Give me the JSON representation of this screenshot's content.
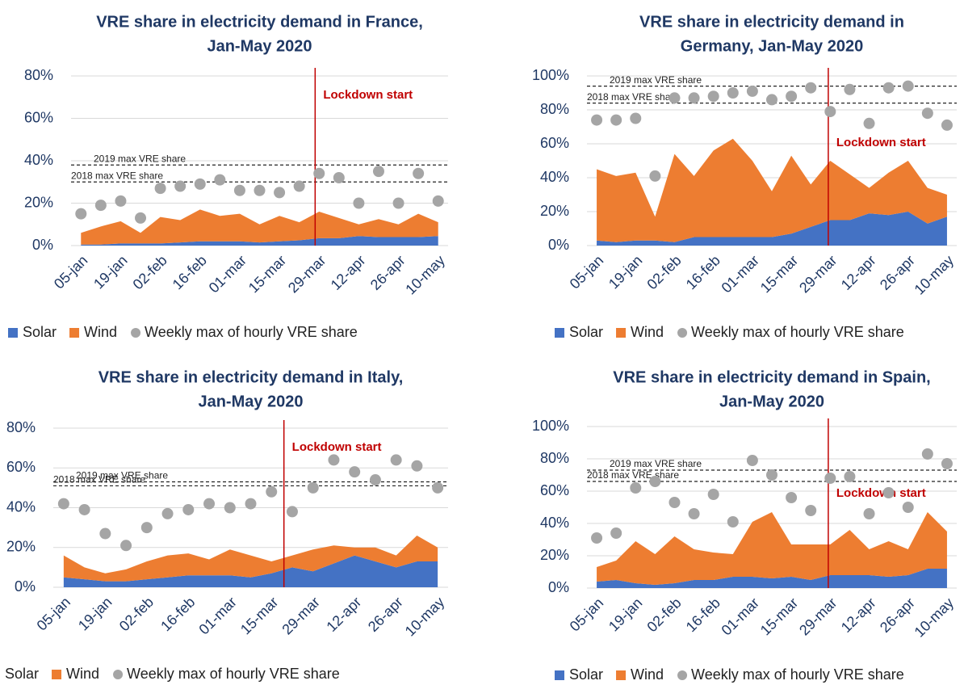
{
  "chart_data": [
    {
      "type": "area",
      "stacked": true,
      "title": [
        "VRE share in electricity demand in France,",
        "Jan-May 2020"
      ],
      "categories": [
        "05-jan",
        null,
        "19-jan",
        null,
        "02-feb",
        null,
        "16-feb",
        null,
        "01-mar",
        null,
        "15-mar",
        null,
        "29-mar",
        null,
        "12-apr",
        null,
        "26-apr",
        null,
        "10-may"
      ],
      "series": [
        {
          "name": "Solar",
          "color": "#4472c4",
          "values": [
            0.5,
            0.5,
            1,
            1,
            1,
            1.5,
            2,
            2,
            2,
            1.5,
            2,
            2.5,
            3.5,
            3.5,
            4.5,
            4,
            4,
            4,
            4.5
          ]
        },
        {
          "name": "Wind",
          "color": "#ed7d31",
          "values": [
            5.5,
            8.5,
            10.5,
            5,
            12.5,
            10.5,
            15,
            12,
            13,
            8.5,
            12,
            8.5,
            12.5,
            9.5,
            5.5,
            8.5,
            6,
            11,
            6.5
          ]
        },
        {
          "name": "Weekly max of hourly VRE share",
          "color": "#a5a5a5",
          "kind": "scatter",
          "values": [
            15,
            19,
            21,
            13,
            27,
            28,
            29,
            31,
            26,
            26,
            25,
            28,
            34,
            32,
            20,
            35,
            20,
            34,
            21
          ]
        }
      ],
      "ylim": [
        0,
        80
      ],
      "yticks": [
        {
          "value": 0,
          "label": "0%"
        },
        {
          "value": 20,
          "label": "20%"
        },
        {
          "value": 40,
          "label": "40%"
        },
        {
          "value": 60,
          "label": "60%"
        },
        {
          "value": 80,
          "label": "80%"
        }
      ],
      "grid": true,
      "reference_lines": [
        {
          "label": "2019 max VRE share",
          "value": 38
        },
        {
          "label": "2018 max VRE share",
          "value": 30
        }
      ],
      "lockdown": {
        "label": "Lockdown start",
        "x": 11.8,
        "color": "#c00000"
      }
    },
    {
      "type": "area",
      "stacked": true,
      "title": [
        "VRE share in electricity demand in",
        "Germany, Jan-May 2020"
      ],
      "categories": [
        "05-jan",
        null,
        "19-jan",
        null,
        "02-feb",
        null,
        "16-feb",
        null,
        "01-mar",
        null,
        "15-mar",
        null,
        "29-mar",
        null,
        "12-apr",
        null,
        "26-apr",
        null,
        "10-may"
      ],
      "series": [
        {
          "name": "Solar",
          "color": "#4472c4",
          "values": [
            3,
            2,
            3,
            3,
            2,
            5,
            5,
            5,
            5,
            5,
            7,
            11,
            15,
            15,
            19,
            18,
            20,
            13,
            17
          ]
        },
        {
          "name": "Wind",
          "color": "#ed7d31",
          "values": [
            42,
            39,
            40,
            14,
            52,
            36,
            51,
            58,
            45,
            27,
            46,
            25,
            35,
            27,
            15,
            25,
            30,
            21,
            13
          ]
        },
        {
          "name": "Weekly max of hourly VRE share",
          "color": "#a5a5a5",
          "kind": "scatter",
          "values": [
            74,
            74,
            75,
            41,
            87,
            87,
            88,
            90,
            91,
            86,
            88,
            93,
            79,
            92,
            72,
            93,
            94,
            78,
            71
          ]
        }
      ],
      "ylim": [
        0,
        100
      ],
      "yticks": [
        {
          "value": 0,
          "label": "0%"
        },
        {
          "value": 20,
          "label": "20%"
        },
        {
          "value": 40,
          "label": "40%"
        },
        {
          "value": 60,
          "label": "60%"
        },
        {
          "value": 80,
          "label": "80%"
        },
        {
          "value": 100,
          "label": "100%"
        }
      ],
      "grid": true,
      "reference_lines": [
        {
          "label": "2019 max VRE share",
          "value": 94
        },
        {
          "label": "2018 max VRE share",
          "value": 84
        }
      ],
      "lockdown": {
        "label": "Lockdown start",
        "x": 11.9,
        "color": "#c00000"
      }
    },
    {
      "type": "area",
      "stacked": true,
      "title": [
        "VRE share in electricity demand in Italy,",
        "Jan-May 2020"
      ],
      "categories": [
        "05-jan",
        null,
        "19-jan",
        null,
        "02-feb",
        null,
        "16-feb",
        null,
        "01-mar",
        null,
        "15-mar",
        null,
        "29-mar",
        null,
        "12-apr",
        null,
        "26-apr",
        null,
        "10-may"
      ],
      "series": [
        {
          "name": "Solar",
          "color": "#4472c4",
          "values": [
            5,
            4,
            3,
            3,
            4,
            5,
            6,
            6,
            6,
            5,
            7,
            10,
            8,
            12,
            16,
            13,
            10,
            13,
            13
          ]
        },
        {
          "name": "Wind",
          "color": "#ed7d31",
          "values": [
            11,
            6,
            4,
            6,
            9,
            11,
            11,
            8,
            13,
            11,
            6,
            6,
            11,
            9,
            4,
            7,
            6,
            13,
            7
          ]
        },
        {
          "name": "Weekly max of hourly VRE share",
          "color": "#a5a5a5",
          "kind": "scatter",
          "values": [
            42,
            39,
            27,
            21,
            30,
            37,
            39,
            42,
            40,
            42,
            48,
            38,
            50,
            64,
            58,
            54,
            64,
            61,
            50
          ]
        }
      ],
      "ylim": [
        0,
        80
      ],
      "yticks": [
        {
          "value": 0,
          "label": "0%"
        },
        {
          "value": 20,
          "label": "20%"
        },
        {
          "value": 40,
          "label": "40%"
        },
        {
          "value": 60,
          "label": "60%"
        },
        {
          "value": 80,
          "label": "80%"
        }
      ],
      "grid": true,
      "reference_lines": [
        {
          "label": "2019 max VRE share",
          "value": 53
        },
        {
          "label": "2018 max VRE share",
          "value": 51
        }
      ],
      "lockdown": {
        "label": "Lockdown start",
        "x": 10.6,
        "color": "#c00000"
      }
    },
    {
      "type": "area",
      "stacked": true,
      "title": [
        "VRE share in electricity demand in Spain,",
        "Jan-May 2020"
      ],
      "categories": [
        "05-jan",
        null,
        "19-jan",
        null,
        "02-feb",
        null,
        "16-feb",
        null,
        "01-mar",
        null,
        "15-mar",
        null,
        "29-mar",
        null,
        "12-apr",
        null,
        "26-apr",
        null,
        "10-may"
      ],
      "series": [
        {
          "name": "Solar",
          "color": "#4472c4",
          "values": [
            4,
            5,
            3,
            2,
            3,
            5,
            5,
            7,
            7,
            6,
            7,
            5,
            8,
            8,
            8,
            7,
            8,
            12,
            12
          ]
        },
        {
          "name": "Wind",
          "color": "#ed7d31",
          "values": [
            9,
            12,
            26,
            19,
            29,
            19,
            17,
            14,
            34,
            41,
            20,
            22,
            19,
            28,
            16,
            22,
            16,
            35,
            23
          ]
        },
        {
          "name": "Weekly max of hourly VRE share",
          "color": "#a5a5a5",
          "kind": "scatter",
          "values": [
            31,
            34,
            62,
            66,
            53,
            46,
            58,
            41,
            79,
            70,
            56,
            48,
            68,
            69,
            46,
            59,
            50,
            83,
            77
          ]
        }
      ],
      "ylim": [
        0,
        100
      ],
      "yticks": [
        {
          "value": 0,
          "label": "0%"
        },
        {
          "value": 20,
          "label": "20%"
        },
        {
          "value": 40,
          "label": "40%"
        },
        {
          "value": 60,
          "label": "60%"
        },
        {
          "value": 80,
          "label": "80%"
        },
        {
          "value": 100,
          "label": "100%"
        }
      ],
      "grid": true,
      "reference_lines": [
        {
          "label": "2019 max VRE share",
          "value": 73
        },
        {
          "label": "2018 max VRE share",
          "value": 66
        }
      ],
      "lockdown": {
        "label": "Lockdown start",
        "x": 11.9,
        "color": "#c00000"
      }
    }
  ]
}
